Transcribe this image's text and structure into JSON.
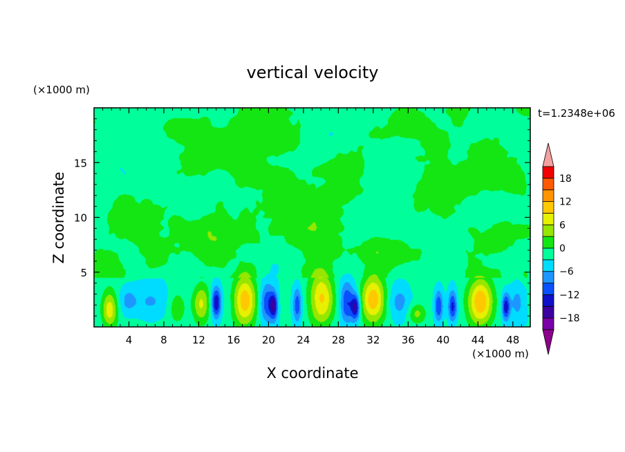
{
  "chart_data": {
    "type": "heatmap",
    "title": "vertical velocity",
    "xlabel": "X coordinate",
    "ylabel": "Z coordinate",
    "x_unit_label": "(×1000 m)",
    "y_unit_label": "(×1000 m)",
    "time_label": "t=1.2348e+06",
    "xlim": [
      0,
      50
    ],
    "ylim": [
      0,
      20
    ],
    "x_ticks": [
      4,
      8,
      12,
      16,
      20,
      24,
      28,
      32,
      36,
      40,
      44,
      48
    ],
    "y_ticks": [
      5,
      10,
      15
    ],
    "colorbar": {
      "levels": [
        -21,
        -18,
        -15,
        -12,
        -9,
        -6,
        -3,
        0,
        3,
        6,
        9,
        12,
        15,
        18,
        21
      ],
      "tick_values": [
        -18,
        -12,
        -6,
        0,
        6,
        12,
        18
      ],
      "tick_labels": [
        "−18",
        "−12",
        "−6",
        "0",
        "6",
        "12",
        "18"
      ],
      "colors": [
        "#7a00a8",
        "#3c00a0",
        "#1010c8",
        "#0a50ff",
        "#1e96ff",
        "#00dcff",
        "#00ff9a",
        "#14e614",
        "#96e600",
        "#e6f000",
        "#ffc800",
        "#ff9600",
        "#ff5a00",
        "#f00000"
      ],
      "under_color": "#8c008c",
      "over_color": "#f5a0a0"
    },
    "cells": [
      {
        "x": 1.8,
        "z": 1.6,
        "sx": 0.9,
        "sz": 1.7,
        "w": 10
      },
      {
        "x": 9.5,
        "z": 1.8,
        "sx": 1.0,
        "sz": 1.5,
        "w": 5
      },
      {
        "x": 12.3,
        "z": 2.1,
        "sx": 1.0,
        "sz": 1.8,
        "w": 9
      },
      {
        "x": 14.0,
        "z": 2.2,
        "sx": 0.55,
        "sz": 1.4,
        "w": -13
      },
      {
        "x": 17.3,
        "z": 2.4,
        "sx": 1.3,
        "sz": 2.2,
        "w": 14
      },
      {
        "x": 19.8,
        "z": 2.2,
        "sx": 0.8,
        "sz": 1.8,
        "w": -9
      },
      {
        "x": 20.6,
        "z": 1.9,
        "sx": 0.45,
        "sz": 1.2,
        "w": -12
      },
      {
        "x": 23.3,
        "z": 2.0,
        "sx": 0.5,
        "sz": 1.6,
        "w": -9
      },
      {
        "x": 26.1,
        "z": 2.6,
        "sx": 1.4,
        "sz": 2.4,
        "w": 12
      },
      {
        "x": 29.0,
        "z": 2.2,
        "sx": 0.8,
        "sz": 1.8,
        "w": -10
      },
      {
        "x": 30.0,
        "z": 1.8,
        "sx": 0.5,
        "sz": 1.2,
        "w": -13
      },
      {
        "x": 32.0,
        "z": 2.6,
        "sx": 1.4,
        "sz": 2.3,
        "w": 13
      },
      {
        "x": 35.0,
        "z": 2.3,
        "sx": 1.3,
        "sz": 1.6,
        "w": -5
      },
      {
        "x": 37.0,
        "z": 1.2,
        "sx": 1.0,
        "sz": 0.9,
        "w": 6
      },
      {
        "x": 39.5,
        "z": 1.9,
        "sx": 0.5,
        "sz": 1.4,
        "w": -10
      },
      {
        "x": 41.1,
        "z": 1.9,
        "sx": 0.5,
        "sz": 1.4,
        "w": -11
      },
      {
        "x": 44.3,
        "z": 2.3,
        "sx": 1.4,
        "sz": 2.1,
        "w": 14
      },
      {
        "x": 47.2,
        "z": 1.8,
        "sx": 0.45,
        "sz": 1.2,
        "w": -12
      },
      {
        "x": 48.5,
        "z": 2.2,
        "sx": 0.9,
        "sz": 1.6,
        "w": -5
      },
      {
        "x": 6.5,
        "z": 2.3,
        "sx": 2.2,
        "sz": 1.5,
        "w": -4
      },
      {
        "x": 3.9,
        "z": 2.4,
        "sx": 1.0,
        "sz": 1.2,
        "w": -4
      }
    ],
    "upper_patches": [
      {
        "x": 6.0,
        "z": 9.0,
        "sx": 3.0,
        "sz": 2.2,
        "w": 3
      },
      {
        "x": 1.5,
        "z": 6.2,
        "sx": 1.8,
        "sz": 1.5,
        "w": 3
      },
      {
        "x": 14.0,
        "z": 7.5,
        "sx": 4.0,
        "sz": 2.0,
        "w": 3
      },
      {
        "x": 16.0,
        "z": 15.5,
        "sx": 4.5,
        "sz": 2.0,
        "w": 3
      },
      {
        "x": 22.0,
        "z": 17.5,
        "sx": 3.0,
        "sz": 2.0,
        "w": 3
      },
      {
        "x": 26.0,
        "z": 10.0,
        "sx": 3.5,
        "sz": 3.5,
        "w": 3
      },
      {
        "x": 29.0,
        "z": 13.5,
        "sx": 3.0,
        "sz": 2.5,
        "w": 3
      },
      {
        "x": 39.0,
        "z": 11.5,
        "sx": 3.0,
        "sz": 2.0,
        "w": 3
      },
      {
        "x": 44.0,
        "z": 15.0,
        "sx": 3.5,
        "sz": 2.0,
        "w": 3
      },
      {
        "x": 46.0,
        "z": 8.0,
        "sx": 3.0,
        "sz": 2.0,
        "w": 3
      },
      {
        "x": 33.0,
        "z": 7.0,
        "sx": 2.5,
        "sz": 1.8,
        "w": 3
      },
      {
        "x": 10.0,
        "z": 18.0,
        "sx": 3.0,
        "sz": 1.5,
        "w": 3
      },
      {
        "x": 36.0,
        "z": 18.5,
        "sx": 3.0,
        "sz": 1.4,
        "w": 3
      },
      {
        "x": 48.5,
        "z": 13.0,
        "sx": 1.5,
        "sz": 1.8,
        "w": 3
      }
    ]
  }
}
